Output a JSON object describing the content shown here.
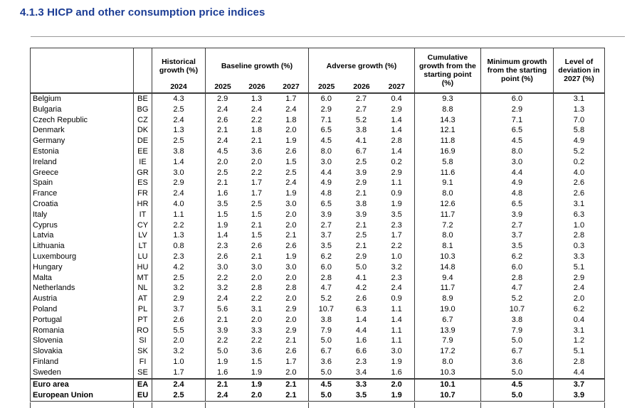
{
  "page": {
    "title": "4.1.3 HICP and other consumption price indices"
  },
  "colors": {
    "title_blue": "#1b3c94",
    "table_border": "#3c3c3c",
    "rule_gray": "#9a9a9a"
  },
  "table": {
    "header": {
      "historical": {
        "label": "Historical growth (%)",
        "years": [
          "2024"
        ]
      },
      "baseline": {
        "label": "Baseline growth (%)",
        "years": [
          "2025",
          "2026",
          "2027"
        ]
      },
      "adverse": {
        "label": "Adverse growth (%)",
        "years": [
          "2025",
          "2026",
          "2027"
        ]
      },
      "cumulative": "Cumulative growth from the starting point (%)",
      "minimum": "Minimum growth from the starting point (%)",
      "deviation": "Level of deviation in 2027 (%)"
    },
    "rows": [
      {
        "country": "Belgium",
        "code": "BE",
        "historical": "4.3",
        "baseline": [
          "2.9",
          "1.3",
          "1.7"
        ],
        "adverse": [
          "6.0",
          "2.7",
          "0.4"
        ],
        "cumulative": "9.3",
        "minimum": "6.0",
        "deviation": "3.1"
      },
      {
        "country": "Bulgaria",
        "code": "BG",
        "historical": "2.5",
        "baseline": [
          "2.4",
          "2.4",
          "2.4"
        ],
        "adverse": [
          "2.9",
          "2.7",
          "2.9"
        ],
        "cumulative": "8.8",
        "minimum": "2.9",
        "deviation": "1.3"
      },
      {
        "country": "Czech Republic",
        "code": "CZ",
        "historical": "2.4",
        "baseline": [
          "2.6",
          "2.2",
          "1.8"
        ],
        "adverse": [
          "7.1",
          "5.2",
          "1.4"
        ],
        "cumulative": "14.3",
        "minimum": "7.1",
        "deviation": "7.0"
      },
      {
        "country": "Denmark",
        "code": "DK",
        "historical": "1.3",
        "baseline": [
          "2.1",
          "1.8",
          "2.0"
        ],
        "adverse": [
          "6.5",
          "3.8",
          "1.4"
        ],
        "cumulative": "12.1",
        "minimum": "6.5",
        "deviation": "5.8"
      },
      {
        "country": "Germany",
        "code": "DE",
        "historical": "2.5",
        "baseline": [
          "2.4",
          "2.1",
          "1.9"
        ],
        "adverse": [
          "4.5",
          "4.1",
          "2.8"
        ],
        "cumulative": "11.8",
        "minimum": "4.5",
        "deviation": "4.9"
      },
      {
        "country": "Estonia",
        "code": "EE",
        "historical": "3.8",
        "baseline": [
          "4.5",
          "3.6",
          "2.6"
        ],
        "adverse": [
          "8.0",
          "6.7",
          "1.4"
        ],
        "cumulative": "16.9",
        "minimum": "8.0",
        "deviation": "5.2"
      },
      {
        "country": "Ireland",
        "code": "IE",
        "historical": "1.4",
        "baseline": [
          "2.0",
          "2.0",
          "1.5"
        ],
        "adverse": [
          "3.0",
          "2.5",
          "0.2"
        ],
        "cumulative": "5.8",
        "minimum": "3.0",
        "deviation": "0.2"
      },
      {
        "country": "Greece",
        "code": "GR",
        "historical": "3.0",
        "baseline": [
          "2.5",
          "2.2",
          "2.5"
        ],
        "adverse": [
          "4.4",
          "3.9",
          "2.9"
        ],
        "cumulative": "11.6",
        "minimum": "4.4",
        "deviation": "4.0"
      },
      {
        "country": "Spain",
        "code": "ES",
        "historical": "2.9",
        "baseline": [
          "2.1",
          "1.7",
          "2.4"
        ],
        "adverse": [
          "4.9",
          "2.9",
          "1.1"
        ],
        "cumulative": "9.1",
        "minimum": "4.9",
        "deviation": "2.6"
      },
      {
        "country": "France",
        "code": "FR",
        "historical": "2.4",
        "baseline": [
          "1.6",
          "1.7",
          "1.9"
        ],
        "adverse": [
          "4.8",
          "2.1",
          "0.9"
        ],
        "cumulative": "8.0",
        "minimum": "4.8",
        "deviation": "2.6"
      },
      {
        "country": "Croatia",
        "code": "HR",
        "historical": "4.0",
        "baseline": [
          "3.5",
          "2.5",
          "3.0"
        ],
        "adverse": [
          "6.5",
          "3.8",
          "1.9"
        ],
        "cumulative": "12.6",
        "minimum": "6.5",
        "deviation": "3.1"
      },
      {
        "country": "Italy",
        "code": "IT",
        "historical": "1.1",
        "baseline": [
          "1.5",
          "1.5",
          "2.0"
        ],
        "adverse": [
          "3.9",
          "3.9",
          "3.5"
        ],
        "cumulative": "11.7",
        "minimum": "3.9",
        "deviation": "6.3"
      },
      {
        "country": "Cyprus",
        "code": "CY",
        "historical": "2.2",
        "baseline": [
          "1.9",
          "2.1",
          "2.0"
        ],
        "adverse": [
          "2.7",
          "2.1",
          "2.3"
        ],
        "cumulative": "7.2",
        "minimum": "2.7",
        "deviation": "1.0"
      },
      {
        "country": "Latvia",
        "code": "LV",
        "historical": "1.3",
        "baseline": [
          "1.4",
          "1.5",
          "2.1"
        ],
        "adverse": [
          "3.7",
          "2.5",
          "1.7"
        ],
        "cumulative": "8.0",
        "minimum": "3.7",
        "deviation": "2.8"
      },
      {
        "country": "Lithuania",
        "code": "LT",
        "historical": "0.8",
        "baseline": [
          "2.3",
          "2.6",
          "2.6"
        ],
        "adverse": [
          "3.5",
          "2.1",
          "2.2"
        ],
        "cumulative": "8.1",
        "minimum": "3.5",
        "deviation": "0.3"
      },
      {
        "country": "Luxembourg",
        "code": "LU",
        "historical": "2.3",
        "baseline": [
          "2.6",
          "2.1",
          "1.9"
        ],
        "adverse": [
          "6.2",
          "2.9",
          "1.0"
        ],
        "cumulative": "10.3",
        "minimum": "6.2",
        "deviation": "3.3"
      },
      {
        "country": "Hungary",
        "code": "HU",
        "historical": "4.2",
        "baseline": [
          "3.0",
          "3.0",
          "3.0"
        ],
        "adverse": [
          "6.0",
          "5.0",
          "3.2"
        ],
        "cumulative": "14.8",
        "minimum": "6.0",
        "deviation": "5.1"
      },
      {
        "country": "Malta",
        "code": "MT",
        "historical": "2.5",
        "baseline": [
          "2.2",
          "2.0",
          "2.0"
        ],
        "adverse": [
          "2.8",
          "4.1",
          "2.3"
        ],
        "cumulative": "9.4",
        "minimum": "2.8",
        "deviation": "2.9"
      },
      {
        "country": "Netherlands",
        "code": "NL",
        "historical": "3.2",
        "baseline": [
          "3.2",
          "2.8",
          "2.8"
        ],
        "adverse": [
          "4.7",
          "4.2",
          "2.4"
        ],
        "cumulative": "11.7",
        "minimum": "4.7",
        "deviation": "2.4"
      },
      {
        "country": "Austria",
        "code": "AT",
        "historical": "2.9",
        "baseline": [
          "2.4",
          "2.2",
          "2.0"
        ],
        "adverse": [
          "5.2",
          "2.6",
          "0.9"
        ],
        "cumulative": "8.9",
        "minimum": "5.2",
        "deviation": "2.0"
      },
      {
        "country": "Poland",
        "code": "PL",
        "historical": "3.7",
        "baseline": [
          "5.6",
          "3.1",
          "2.9"
        ],
        "adverse": [
          "10.7",
          "6.3",
          "1.1"
        ],
        "cumulative": "19.0",
        "minimum": "10.7",
        "deviation": "6.2"
      },
      {
        "country": "Portugal",
        "code": "PT",
        "historical": "2.6",
        "baseline": [
          "2.1",
          "2.0",
          "2.0"
        ],
        "adverse": [
          "3.8",
          "1.4",
          "1.4"
        ],
        "cumulative": "6.7",
        "minimum": "3.8",
        "deviation": "0.4"
      },
      {
        "country": "Romania",
        "code": "RO",
        "historical": "5.5",
        "baseline": [
          "3.9",
          "3.3",
          "2.9"
        ],
        "adverse": [
          "7.9",
          "4.4",
          "1.1"
        ],
        "cumulative": "13.9",
        "minimum": "7.9",
        "deviation": "3.1"
      },
      {
        "country": "Slovenia",
        "code": "SI",
        "historical": "2.0",
        "baseline": [
          "2.2",
          "2.2",
          "2.1"
        ],
        "adverse": [
          "5.0",
          "1.6",
          "1.1"
        ],
        "cumulative": "7.9",
        "minimum": "5.0",
        "deviation": "1.2"
      },
      {
        "country": "Slovakia",
        "code": "SK",
        "historical": "3.2",
        "baseline": [
          "5.0",
          "3.6",
          "2.6"
        ],
        "adverse": [
          "6.7",
          "6.6",
          "3.0"
        ],
        "cumulative": "17.2",
        "minimum": "6.7",
        "deviation": "5.1"
      },
      {
        "country": "Finland",
        "code": "FI",
        "historical": "1.0",
        "baseline": [
          "1.9",
          "1.5",
          "1.7"
        ],
        "adverse": [
          "3.6",
          "2.3",
          "1.9"
        ],
        "cumulative": "8.0",
        "minimum": "3.6",
        "deviation": "2.8"
      },
      {
        "country": "Sweden",
        "code": "SE",
        "historical": "1.7",
        "baseline": [
          "1.6",
          "1.9",
          "2.0"
        ],
        "adverse": [
          "5.0",
          "3.4",
          "1.6"
        ],
        "cumulative": "10.3",
        "minimum": "5.0",
        "deviation": "4.4"
      }
    ],
    "summary_rows": [
      {
        "country": "Euro area",
        "code": "EA",
        "historical": "2.4",
        "baseline": [
          "2.1",
          "1.9",
          "2.1"
        ],
        "adverse": [
          "4.5",
          "3.3",
          "2.0"
        ],
        "cumulative": "10.1",
        "minimum": "4.5",
        "deviation": "3.7"
      },
      {
        "country": "European Union",
        "code": "EU",
        "historical": "2.5",
        "baseline": [
          "2.4",
          "2.0",
          "2.1"
        ],
        "adverse": [
          "5.0",
          "3.5",
          "1.9"
        ],
        "cumulative": "10.7",
        "minimum": "5.0",
        "deviation": "3.9"
      }
    ]
  }
}
